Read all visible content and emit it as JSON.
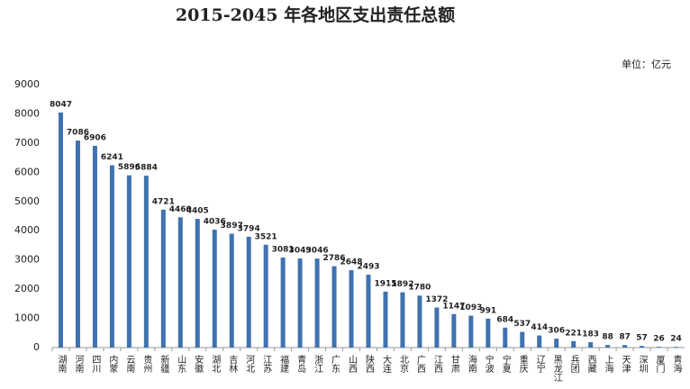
{
  "chart_data": {
    "type": "bar",
    "title": "2015-2045 年各地区支出责任总额",
    "unit": "单位：亿元",
    "categories": [
      "湖南",
      "河南",
      "四川",
      "内蒙",
      "云南",
      "贵州",
      "新疆",
      "山东",
      "安徽",
      "湖北",
      "吉林",
      "河北",
      "江苏",
      "福建",
      "青岛",
      "浙江",
      "广东",
      "山西",
      "陕西",
      "大连",
      "北京",
      "广西",
      "江西",
      "甘肃",
      "海南",
      "宁波",
      "宁夏",
      "重庆",
      "辽宁",
      "黑龙江",
      "兵团",
      "西藏",
      "上海",
      "天津",
      "深圳",
      "厦门",
      "青海"
    ],
    "values": [
      8047,
      7086,
      6906,
      6241,
      5896,
      5884,
      4721,
      4460,
      4405,
      4036,
      3897,
      3794,
      3521,
      3081,
      3049,
      3046,
      2786,
      2648,
      2493,
      1915,
      1892,
      1780,
      1372,
      1147,
      1093,
      991,
      684,
      537,
      414,
      306,
      221,
      183,
      88,
      87,
      57,
      26,
      24
    ],
    "color": "#3f72af",
    "ylim": [
      0,
      9000
    ],
    "yticks": [
      0,
      1000,
      2000,
      3000,
      4000,
      5000,
      6000,
      7000,
      8000,
      9000
    ],
    "grid": false
  }
}
